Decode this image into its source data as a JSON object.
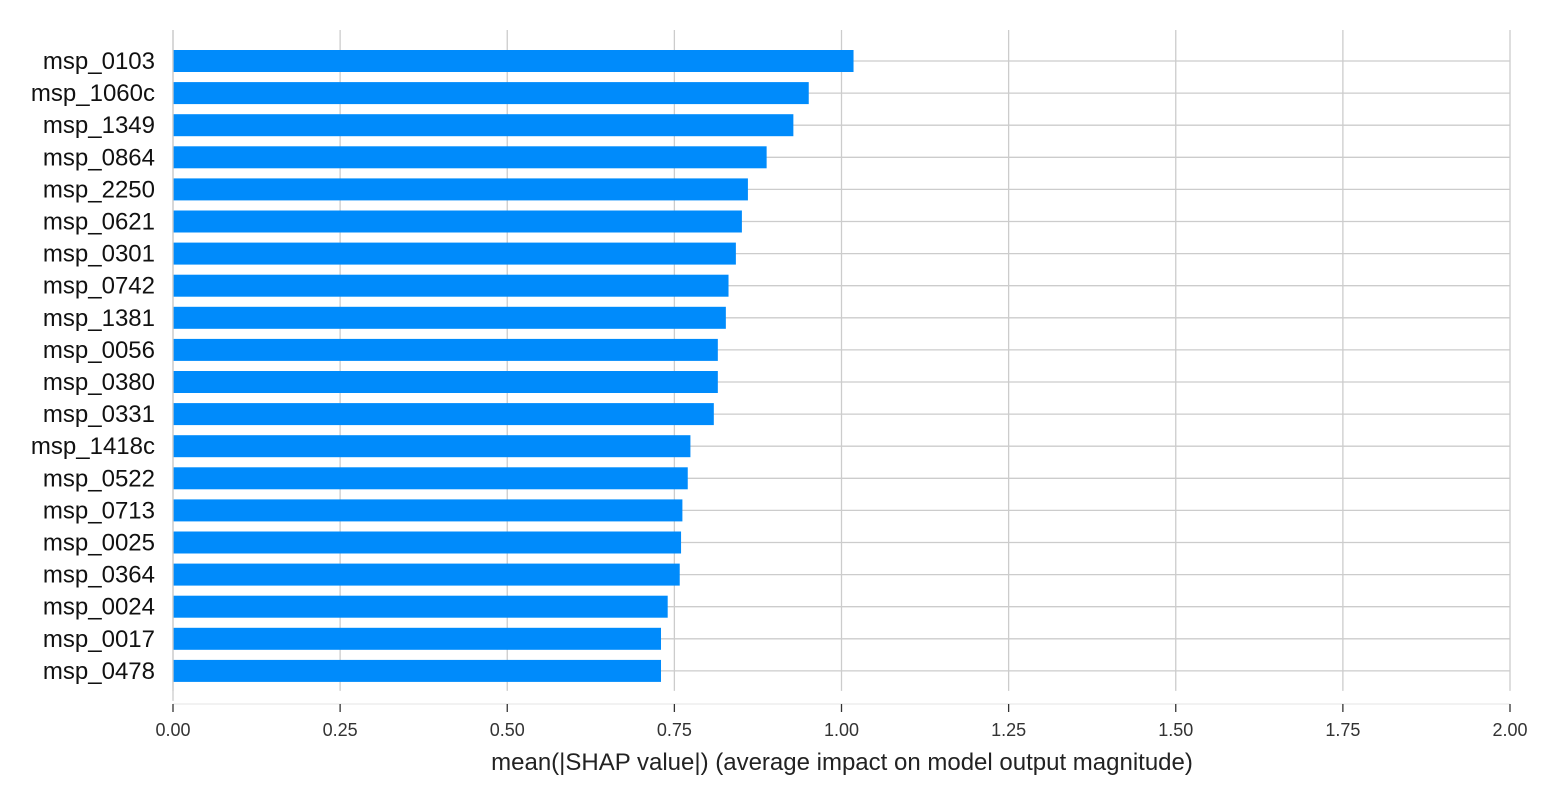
{
  "chart_data": {
    "type": "bar",
    "orientation": "horizontal",
    "categories": [
      "msp_0103",
      "msp_1060c",
      "msp_1349",
      "msp_0864",
      "msp_2250",
      "msp_0621",
      "msp_0301",
      "msp_0742",
      "msp_1381",
      "msp_0056",
      "msp_0380",
      "msp_0331",
      "msp_1418c",
      "msp_0522",
      "msp_0713",
      "msp_0025",
      "msp_0364",
      "msp_0024",
      "msp_0017",
      "msp_0478"
    ],
    "values": [
      1.018,
      0.951,
      0.928,
      0.888,
      0.86,
      0.851,
      0.842,
      0.831,
      0.827,
      0.815,
      0.815,
      0.809,
      0.774,
      0.77,
      0.762,
      0.76,
      0.758,
      0.74,
      0.73,
      0.73
    ],
    "xlabel": "mean(|SHAP value|) (average impact on model output magnitude)",
    "ylabel": "",
    "title": "",
    "xlim": [
      0,
      2.0
    ],
    "xticks": [
      "0.00",
      "0.25",
      "0.50",
      "0.75",
      "1.00",
      "1.25",
      "1.50",
      "1.75",
      "2.00"
    ],
    "grid": true,
    "bar_color": "#008bfb",
    "grid_color": "#cccccc"
  }
}
